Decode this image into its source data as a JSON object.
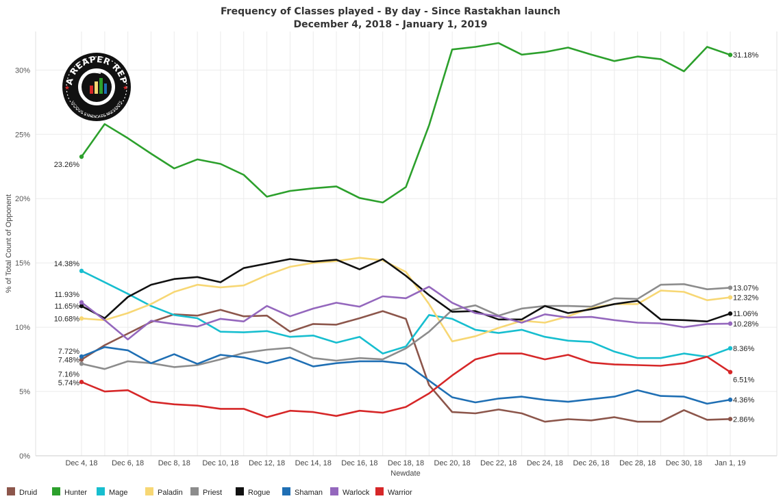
{
  "title": "Frequency of Classes played - By day - Since Rastakhan launch",
  "subtitle": "December 4, 2018 - January 1, 2019",
  "logo": {
    "name": "data-reaper-report-logo",
    "top_text": "DATA REAPER REPORT",
    "bottom_text": "VICIOUS SYNDICATE PRESENTS"
  },
  "chart_data": {
    "type": "line",
    "title": "Frequency of Classes played - By day - Since Rastakhan launch",
    "subtitle": "December 4, 2018 - January 1, 2019",
    "xlabel": "Newdate",
    "ylabel": "% of Total Count of Opponent",
    "ylim": [
      0,
      33
    ],
    "yticks": [
      0,
      5,
      10,
      15,
      20,
      25,
      30
    ],
    "ytick_labels": [
      "0%",
      "5%",
      "10%",
      "15%",
      "20%",
      "25%",
      "30%"
    ],
    "x": [
      "Dec 4",
      "Dec 5",
      "Dec 6",
      "Dec 7",
      "Dec 8",
      "Dec 9",
      "Dec 10",
      "Dec 11",
      "Dec 12",
      "Dec 13",
      "Dec 14",
      "Dec 15",
      "Dec 16",
      "Dec 17",
      "Dec 18",
      "Dec 19",
      "Dec 20",
      "Dec 21",
      "Dec 22",
      "Dec 23",
      "Dec 24",
      "Dec 25",
      "Dec 26",
      "Dec 27",
      "Dec 28",
      "Dec 29",
      "Dec 30",
      "Dec 31",
      "Jan 1"
    ],
    "xtick_labels": [
      {
        "index": 0,
        "label": "Dec 4, 18"
      },
      {
        "index": 2,
        "label": "Dec 6, 18"
      },
      {
        "index": 4,
        "label": "Dec 8, 18"
      },
      {
        "index": 6,
        "label": "Dec 10, 18"
      },
      {
        "index": 8,
        "label": "Dec 12, 18"
      },
      {
        "index": 10,
        "label": "Dec 14, 18"
      },
      {
        "index": 12,
        "label": "Dec 16, 18"
      },
      {
        "index": 14,
        "label": "Dec 18, 18"
      },
      {
        "index": 16,
        "label": "Dec 20, 18"
      },
      {
        "index": 18,
        "label": "Dec 22, 18"
      },
      {
        "index": 20,
        "label": "Dec 24, 18"
      },
      {
        "index": 22,
        "label": "Dec 26, 18"
      },
      {
        "index": 24,
        "label": "Dec 28, 18"
      },
      {
        "index": 26,
        "label": "Dec 30, 18"
      },
      {
        "index": 28,
        "label": "Jan 1, 19"
      }
    ],
    "grid": true,
    "legend": "bottom",
    "series": [
      {
        "name": "Druid",
        "color": "#8c564b",
        "values": [
          7.48,
          8.6,
          9.5,
          10.4,
          11.0,
          10.9,
          11.35,
          10.85,
          10.9,
          9.65,
          10.25,
          10.2,
          10.7,
          11.25,
          10.65,
          5.5,
          3.4,
          3.3,
          3.6,
          3.3,
          2.65,
          2.85,
          2.75,
          3.0,
          2.65,
          2.65,
          3.55,
          2.8,
          2.86
        ],
        "start_label": "7.48%",
        "end_label": "2.86%"
      },
      {
        "name": "Hunter",
        "color": "#2ca02c",
        "values": [
          23.26,
          25.8,
          24.7,
          23.5,
          22.35,
          23.05,
          22.7,
          21.85,
          20.15,
          20.6,
          20.8,
          20.95,
          20.05,
          19.7,
          20.9,
          25.7,
          31.6,
          31.8,
          32.1,
          31.2,
          31.4,
          31.75,
          31.2,
          30.7,
          31.05,
          30.85,
          29.9,
          31.8,
          31.18
        ],
        "start_label": "23.26%",
        "end_label": "31.18%"
      },
      {
        "name": "Mage",
        "color": "#17becf",
        "values": [
          14.38,
          13.5,
          12.6,
          11.65,
          10.95,
          10.7,
          9.65,
          9.6,
          9.7,
          9.25,
          9.35,
          8.8,
          9.25,
          7.95,
          8.5,
          10.95,
          10.65,
          9.8,
          9.55,
          9.8,
          9.25,
          8.95,
          8.85,
          8.1,
          7.6,
          7.6,
          7.95,
          7.7,
          8.36
        ],
        "start_label": "14.38%",
        "end_label": "8.36%"
      },
      {
        "name": "Paladin",
        "color": "#f7d774",
        "values": [
          10.68,
          10.55,
          11.1,
          11.8,
          12.75,
          13.3,
          13.1,
          13.25,
          14.05,
          14.7,
          15.0,
          15.15,
          15.4,
          15.2,
          14.3,
          11.8,
          8.9,
          9.3,
          9.95,
          10.5,
          10.35,
          10.85,
          11.5,
          11.8,
          11.8,
          12.85,
          12.75,
          12.1,
          12.32
        ],
        "start_label": "10.68%",
        "end_label": "12.32%"
      },
      {
        "name": "Priest",
        "color": "#8c8c8c",
        "values": [
          7.16,
          6.75,
          7.35,
          7.2,
          6.9,
          7.05,
          7.5,
          8.0,
          8.25,
          8.4,
          7.6,
          7.4,
          7.6,
          7.5,
          8.35,
          9.65,
          11.35,
          11.7,
          10.9,
          11.45,
          11.65,
          11.65,
          11.6,
          12.25,
          12.2,
          13.3,
          13.35,
          12.95,
          13.07
        ],
        "start_label": "7.16%",
        "end_label": "13.07%"
      },
      {
        "name": "Rogue",
        "color": "#111111",
        "values": [
          11.65,
          10.7,
          12.35,
          13.3,
          13.75,
          13.9,
          13.5,
          14.6,
          14.95,
          15.3,
          15.1,
          15.25,
          14.5,
          15.3,
          14.0,
          12.5,
          11.2,
          11.25,
          10.6,
          10.6,
          11.65,
          11.1,
          11.4,
          11.8,
          12.05,
          10.6,
          10.55,
          10.45,
          11.06
        ],
        "start_label": "11.65%",
        "end_label": "11.06%"
      },
      {
        "name": "Shaman",
        "color": "#1f6fb4",
        "values": [
          7.72,
          8.45,
          8.2,
          7.2,
          7.9,
          7.15,
          7.85,
          7.65,
          7.2,
          7.65,
          6.95,
          7.2,
          7.35,
          7.35,
          7.15,
          5.85,
          4.55,
          4.15,
          4.45,
          4.6,
          4.35,
          4.2,
          4.4,
          4.6,
          5.1,
          4.65,
          4.6,
          4.05,
          4.36
        ],
        "start_label": "7.72%",
        "end_label": "4.36%"
      },
      {
        "name": "Warlock",
        "color": "#9467bd",
        "values": [
          11.93,
          10.55,
          9.05,
          10.5,
          10.25,
          10.05,
          10.65,
          10.45,
          11.65,
          10.85,
          11.45,
          11.9,
          11.6,
          12.4,
          12.25,
          13.15,
          11.9,
          11.1,
          10.85,
          10.35,
          11.0,
          10.75,
          10.8,
          10.55,
          10.35,
          10.3,
          10.0,
          10.25,
          10.28
        ],
        "start_label": "11.93%",
        "end_label": "10.28%"
      },
      {
        "name": "Warrior",
        "color": "#d62728",
        "values": [
          5.74,
          5.0,
          5.1,
          4.2,
          4.0,
          3.9,
          3.65,
          3.65,
          3.0,
          3.5,
          3.4,
          3.1,
          3.5,
          3.35,
          3.8,
          4.85,
          6.25,
          7.5,
          7.95,
          7.95,
          7.5,
          7.85,
          7.25,
          7.1,
          7.05,
          7.0,
          7.2,
          7.7,
          6.51
        ],
        "start_label": "5.74%",
        "end_label": "6.51%"
      }
    ]
  }
}
